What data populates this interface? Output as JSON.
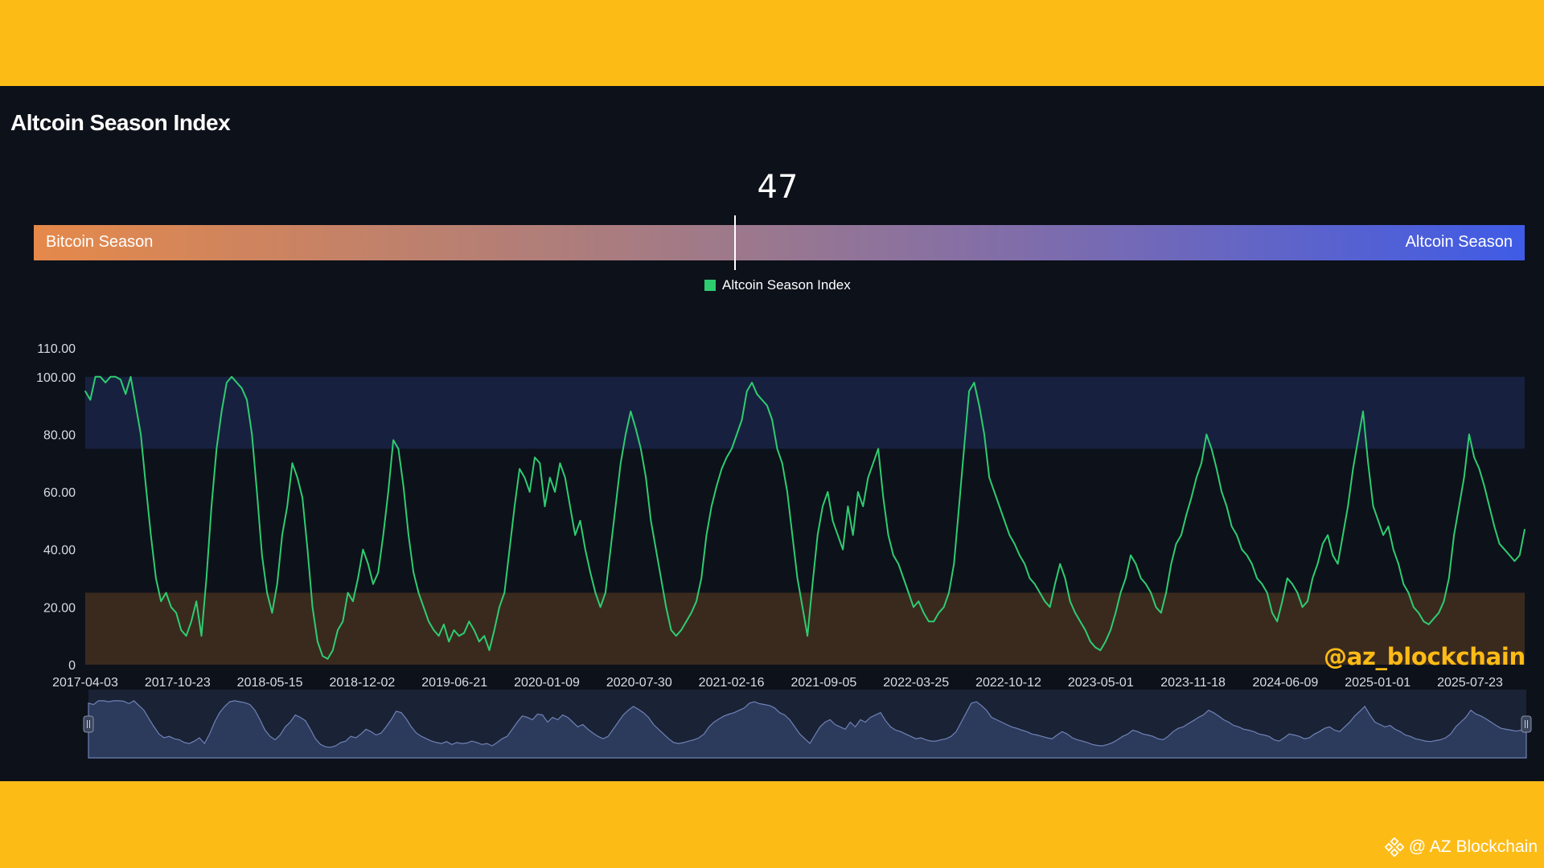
{
  "page": {
    "title": "Altcoin Season Index",
    "current_value": "47",
    "bitcoin_season_label": "Bitcoin Season",
    "altcoin_season_label": "Altcoin Season",
    "watermark": "@az_blockchain",
    "footer_credit": "@ AZ Blockchain",
    "icons": [
      "binance-logo-icon"
    ],
    "colors": {
      "background": "#FDBB16",
      "panel": "#0D111A",
      "line": "#2ECC71",
      "altcoin_zone": "#17213F",
      "bitcoin_zone": "#3A2A1E",
      "bar_start": "#E5894A",
      "bar_end": "#3F5BE6"
    }
  },
  "chart_data": {
    "type": "line",
    "title": "",
    "legend_position": "top-center",
    "series": [
      {
        "name": "Altcoin Season Index",
        "color": "#2ECC71",
        "values": [
          95,
          92,
          100,
          100,
          98,
          100,
          100,
          99,
          94,
          100,
          90,
          80,
          62,
          45,
          30,
          22,
          25,
          20,
          18,
          12,
          10,
          15,
          22,
          10,
          30,
          55,
          75,
          88,
          98,
          100,
          98,
          96,
          92,
          80,
          60,
          38,
          25,
          18,
          28,
          45,
          55,
          70,
          65,
          58,
          40,
          20,
          8,
          3,
          2,
          5,
          12,
          15,
          25,
          22,
          30,
          40,
          35,
          28,
          32,
          45,
          60,
          78,
          75,
          62,
          45,
          32,
          25,
          20,
          15,
          12,
          10,
          14,
          8,
          12,
          10,
          11,
          15,
          12,
          8,
          10,
          5,
          12,
          20,
          25,
          40,
          55,
          68,
          65,
          60,
          72,
          70,
          55,
          65,
          60,
          70,
          65,
          55,
          45,
          50,
          40,
          32,
          25,
          20,
          25,
          40,
          55,
          70,
          80,
          88,
          82,
          75,
          65,
          50,
          40,
          30,
          20,
          12,
          10,
          12,
          15,
          18,
          22,
          30,
          45,
          55,
          62,
          68,
          72,
          75,
          80,
          85,
          95,
          98,
          94,
          92,
          90,
          85,
          75,
          70,
          60,
          45,
          30,
          20,
          10,
          28,
          45,
          55,
          60,
          50,
          45,
          40,
          55,
          45,
          60,
          55,
          65,
          70,
          75,
          58,
          45,
          38,
          35,
          30,
          25,
          20,
          22,
          18,
          15,
          15,
          18,
          20,
          25,
          35,
          55,
          75,
          95,
          98,
          90,
          80,
          65,
          60,
          55,
          50,
          45,
          42,
          38,
          35,
          30,
          28,
          25,
          22,
          20,
          28,
          35,
          30,
          22,
          18,
          15,
          12,
          8,
          6,
          5,
          8,
          12,
          18,
          25,
          30,
          38,
          35,
          30,
          28,
          25,
          20,
          18,
          25,
          35,
          42,
          45,
          52,
          58,
          65,
          70,
          80,
          75,
          68,
          60,
          55,
          48,
          45,
          40,
          38,
          35,
          30,
          28,
          25,
          18,
          15,
          22,
          30,
          28,
          25,
          20,
          22,
          30,
          35,
          42,
          45,
          38,
          35,
          45,
          55,
          68,
          78,
          88,
          70,
          55,
          50,
          45,
          48,
          40,
          35,
          28,
          25,
          20,
          18,
          15,
          14,
          16,
          18,
          22,
          30,
          45,
          55,
          65,
          80,
          72,
          68,
          62,
          55,
          48,
          42,
          40,
          38,
          36,
          38,
          47
        ]
      }
    ],
    "x_tick_labels": [
      "2017-04-03",
      "2017-10-23",
      "2018-05-15",
      "2018-12-02",
      "2019-06-21",
      "2020-01-09",
      "2020-07-30",
      "2021-02-16",
      "2021-09-05",
      "2022-03-25",
      "2022-10-12",
      "2023-05-01",
      "2023-11-18",
      "2024-06-09",
      "2025-01-01",
      "2025-07-23"
    ],
    "y_tick_labels": [
      "0",
      "20.00",
      "40.00",
      "60.00",
      "80.00",
      "100.00",
      "110.00"
    ],
    "y_ticks": [
      0,
      20,
      40,
      60,
      80,
      100,
      110
    ],
    "ylim": [
      0,
      110
    ],
    "zones": [
      {
        "name": "altcoin-season-zone",
        "from": 75,
        "to": 100,
        "color": "#17213F"
      },
      {
        "name": "bitcoin-season-zone",
        "from": 0,
        "to": 25,
        "color": "#3A2A1E"
      }
    ],
    "current_value": 47,
    "navigator": {
      "start": 0,
      "end": 1
    },
    "grid": false
  }
}
